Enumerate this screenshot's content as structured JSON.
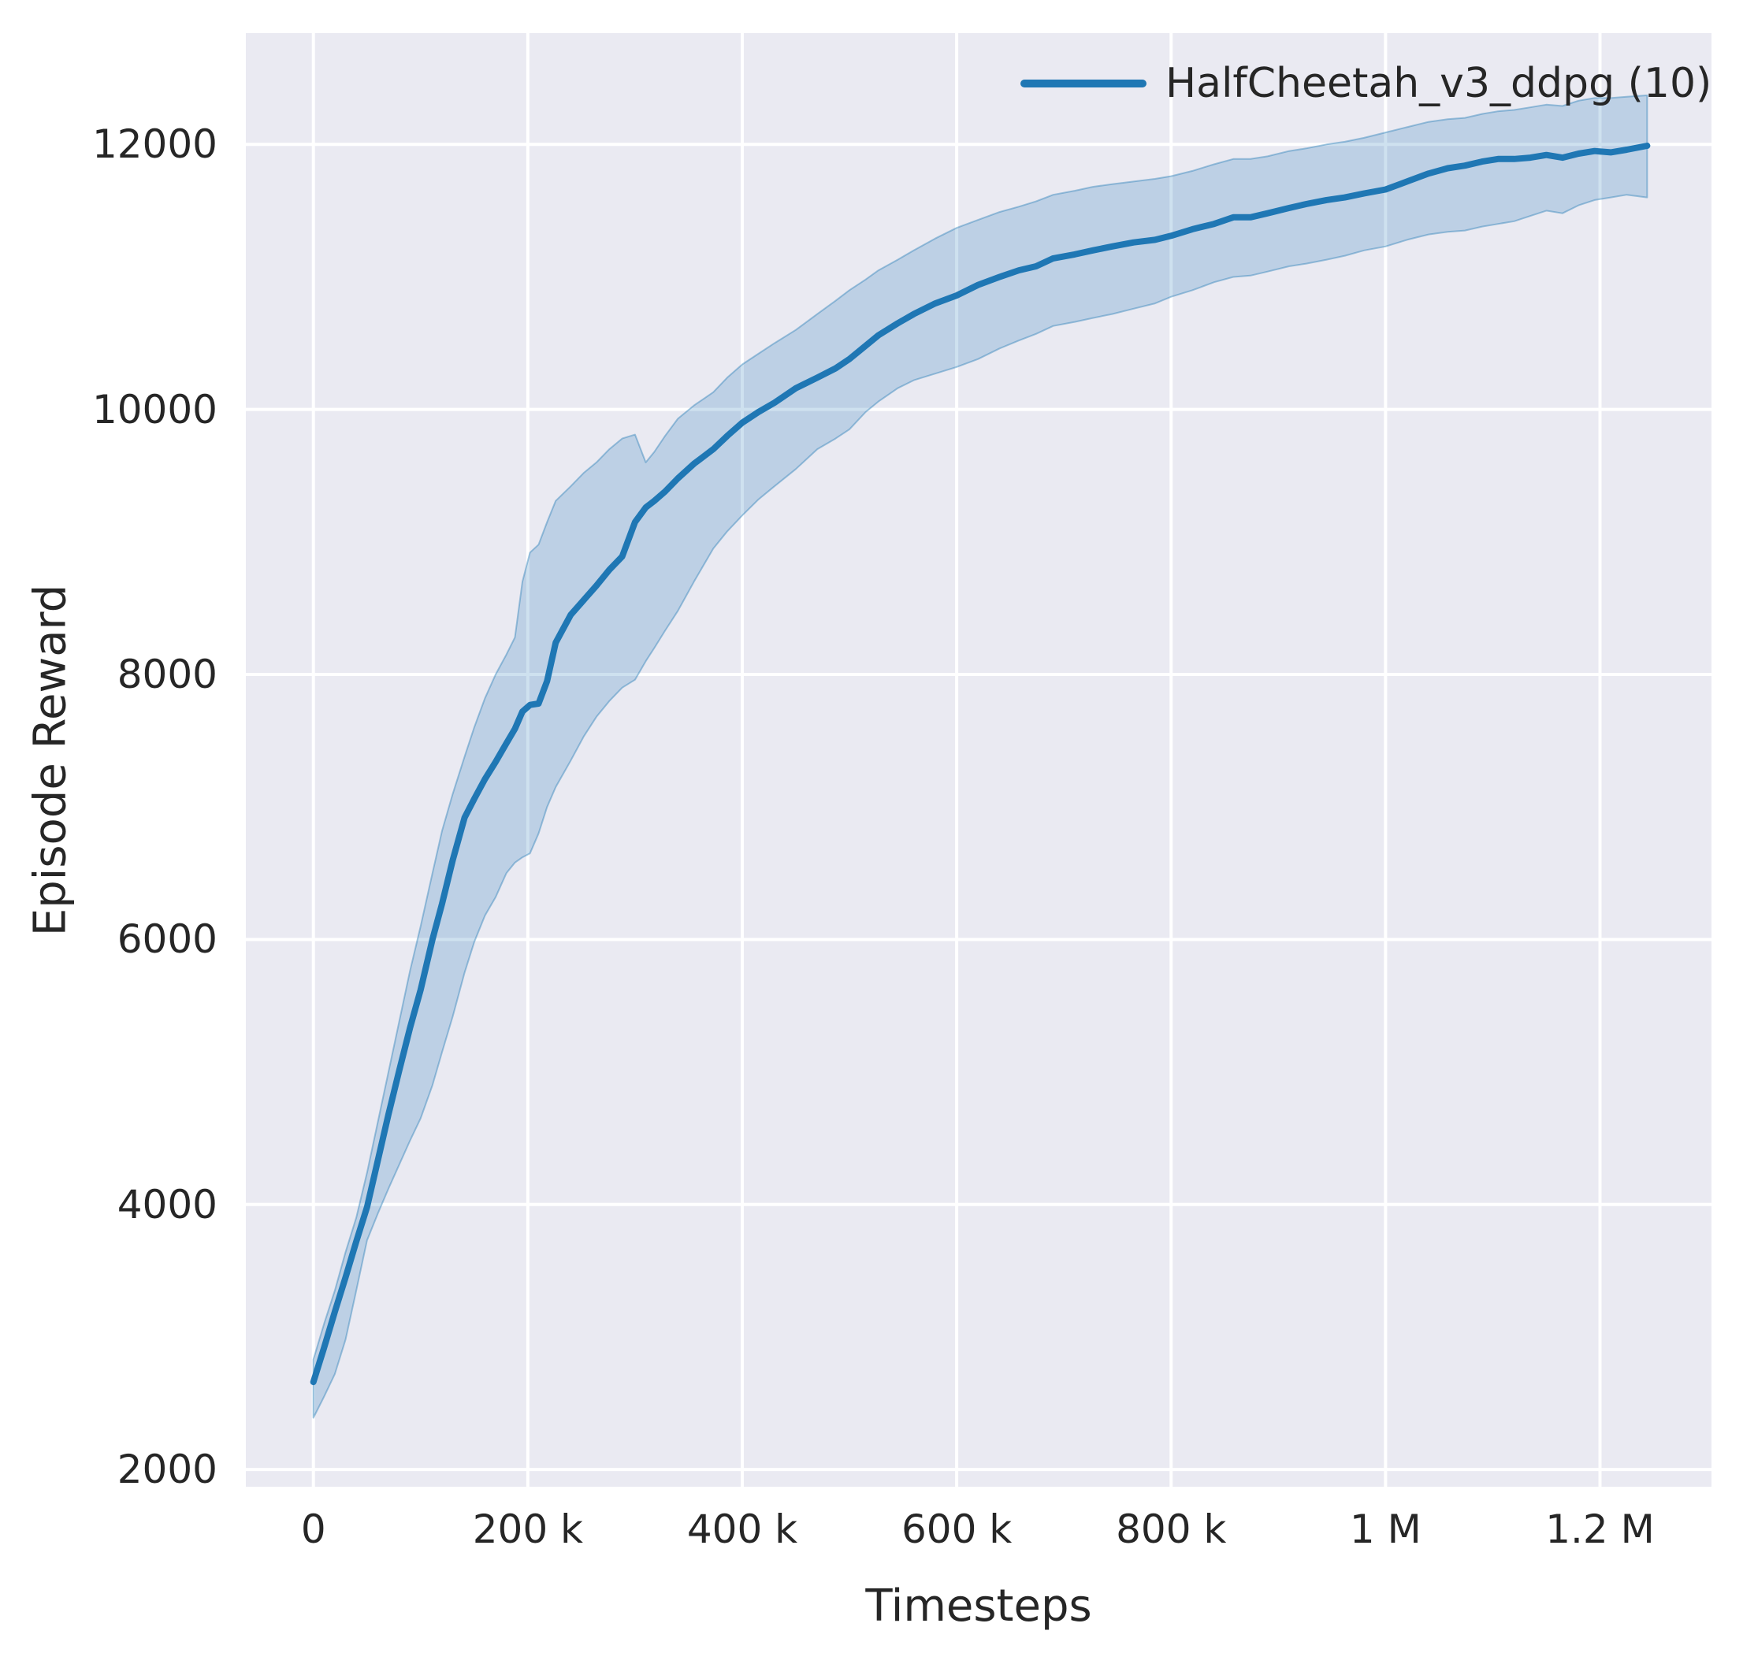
{
  "figure": {
    "legend": {
      "entries": [
        {
          "label": "HalfCheetah_v3_ddpg (10)",
          "color": "#1f77b4"
        }
      ]
    },
    "x_axis": {
      "label": "Timesteps",
      "tick_labels": [
        "0",
        "200 k",
        "400 k",
        "600 k",
        "800 k",
        "1 M",
        "1.2 M"
      ],
      "tick_values": [
        0,
        200000,
        400000,
        600000,
        800000,
        1000000,
        1200000
      ]
    },
    "y_axis": {
      "label": "Episode Reward",
      "tick_labels": [
        "2000",
        "4000",
        "6000",
        "8000",
        "10000",
        "12000"
      ],
      "tick_values": [
        2000,
        4000,
        6000,
        8000,
        10000,
        12000
      ]
    },
    "colors": {
      "figure_background": "#ffffff",
      "plot_background": "#eaeaf2",
      "grid": "#ffffff",
      "text": "#262626",
      "line": "#1f77b4",
      "band_fill": "rgba(31,119,180,0.22)",
      "band_edge": "rgba(31,119,180,0.40)"
    }
  },
  "chart_data": {
    "type": "line",
    "title": "",
    "xlabel": "Timesteps",
    "ylabel": "Episode Reward",
    "grid": true,
    "legend_position": "upper right",
    "xlim": [
      -63000,
      1304000
    ],
    "ylim": [
      1870,
      12840
    ],
    "x_ticks": [
      0,
      200000,
      400000,
      600000,
      800000,
      1000000,
      1200000
    ],
    "x_tick_labels": [
      "0",
      "200 k",
      "400 k",
      "600 k",
      "800 k",
      "1 M",
      "1.2 M"
    ],
    "y_ticks": [
      2000,
      4000,
      6000,
      8000,
      10000,
      12000
    ],
    "y_tick_labels": [
      "2000",
      "4000",
      "6000",
      "8000",
      "10000",
      "12000"
    ],
    "series": [
      {
        "name": "HalfCheetah_v3_ddpg (10)",
        "color": "#1f77b4",
        "x": [
          0,
          10000,
          20000,
          30000,
          40000,
          50000,
          60000,
          70000,
          80000,
          90000,
          100000,
          111000,
          120000,
          130000,
          141000,
          150000,
          160000,
          170000,
          180000,
          188000,
          195000,
          202000,
          210000,
          218000,
          226000,
          240000,
          252000,
          264000,
          276000,
          288000,
          300000,
          310000,
          318000,
          328000,
          340000,
          355000,
          373000,
          386000,
          400000,
          415000,
          430000,
          450000,
          470000,
          487000,
          500000,
          515000,
          527000,
          545000,
          560000,
          580000,
          600000,
          620000,
          640000,
          658000,
          674000,
          690000,
          710000,
          727000,
          745000,
          765000,
          785000,
          800000,
          820000,
          840000,
          858000,
          874000,
          890000,
          910000,
          926000,
          945000,
          962000,
          980000,
          1000000,
          1020000,
          1040000,
          1058000,
          1074000,
          1090000,
          1105000,
          1120000,
          1135000,
          1150000,
          1165000,
          1180000,
          1195000,
          1210000,
          1225000,
          1244000
        ],
        "mean": [
          2660,
          2920,
          3190,
          3450,
          3720,
          3980,
          4330,
          4680,
          5010,
          5330,
          5620,
          6000,
          6270,
          6600,
          6920,
          7060,
          7210,
          7340,
          7480,
          7590,
          7720,
          7770,
          7780,
          7950,
          8240,
          8450,
          8560,
          8670,
          8790,
          8890,
          9150,
          9260,
          9310,
          9380,
          9480,
          9590,
          9700,
          9800,
          9900,
          9980,
          10050,
          10160,
          10240,
          10310,
          10380,
          10480,
          10560,
          10650,
          10720,
          10800,
          10860,
          10940,
          11000,
          11050,
          11080,
          11140,
          11170,
          11200,
          11230,
          11260,
          11280,
          11310,
          11360,
          11400,
          11450,
          11450,
          11480,
          11520,
          11550,
          11580,
          11600,
          11630,
          11660,
          11720,
          11780,
          11820,
          11840,
          11870,
          11890,
          11890,
          11900,
          11920,
          11900,
          11930,
          11950,
          11940,
          11960,
          11990
        ],
        "band_low": [
          2390,
          2550,
          2720,
          2980,
          3350,
          3730,
          3930,
          4120,
          4300,
          4480,
          4650,
          4900,
          5150,
          5420,
          5750,
          5980,
          6180,
          6320,
          6500,
          6580,
          6620,
          6650,
          6800,
          7000,
          7150,
          7350,
          7530,
          7680,
          7800,
          7900,
          7960,
          8100,
          8200,
          8330,
          8480,
          8700,
          8950,
          9080,
          9200,
          9320,
          9420,
          9550,
          9700,
          9780,
          9850,
          9980,
          10060,
          10160,
          10220,
          10270,
          10320,
          10380,
          10460,
          10520,
          10570,
          10630,
          10660,
          10690,
          10720,
          10760,
          10800,
          10850,
          10900,
          10960,
          11000,
          11010,
          11040,
          11080,
          11100,
          11130,
          11160,
          11200,
          11230,
          11280,
          11320,
          11340,
          11350,
          11380,
          11400,
          11420,
          11460,
          11500,
          11480,
          11540,
          11580,
          11600,
          11620,
          11600
        ],
        "band_high": [
          2830,
          3100,
          3350,
          3640,
          3900,
          4240,
          4620,
          5000,
          5380,
          5760,
          6100,
          6500,
          6820,
          7100,
          7380,
          7600,
          7820,
          8000,
          8150,
          8280,
          8700,
          8920,
          8980,
          9150,
          9310,
          9420,
          9520,
          9600,
          9700,
          9780,
          9810,
          9600,
          9680,
          9800,
          9930,
          10030,
          10130,
          10240,
          10340,
          10420,
          10500,
          10600,
          10720,
          10820,
          10900,
          10980,
          11050,
          11130,
          11200,
          11290,
          11370,
          11430,
          11490,
          11530,
          11570,
          11620,
          11650,
          11680,
          11700,
          11720,
          11740,
          11760,
          11800,
          11850,
          11890,
          11890,
          11910,
          11950,
          11970,
          12000,
          12020,
          12050,
          12090,
          12130,
          12170,
          12190,
          12200,
          12230,
          12250,
          12260,
          12280,
          12300,
          12290,
          12330,
          12350,
          12350,
          12360,
          12370
        ]
      }
    ]
  }
}
